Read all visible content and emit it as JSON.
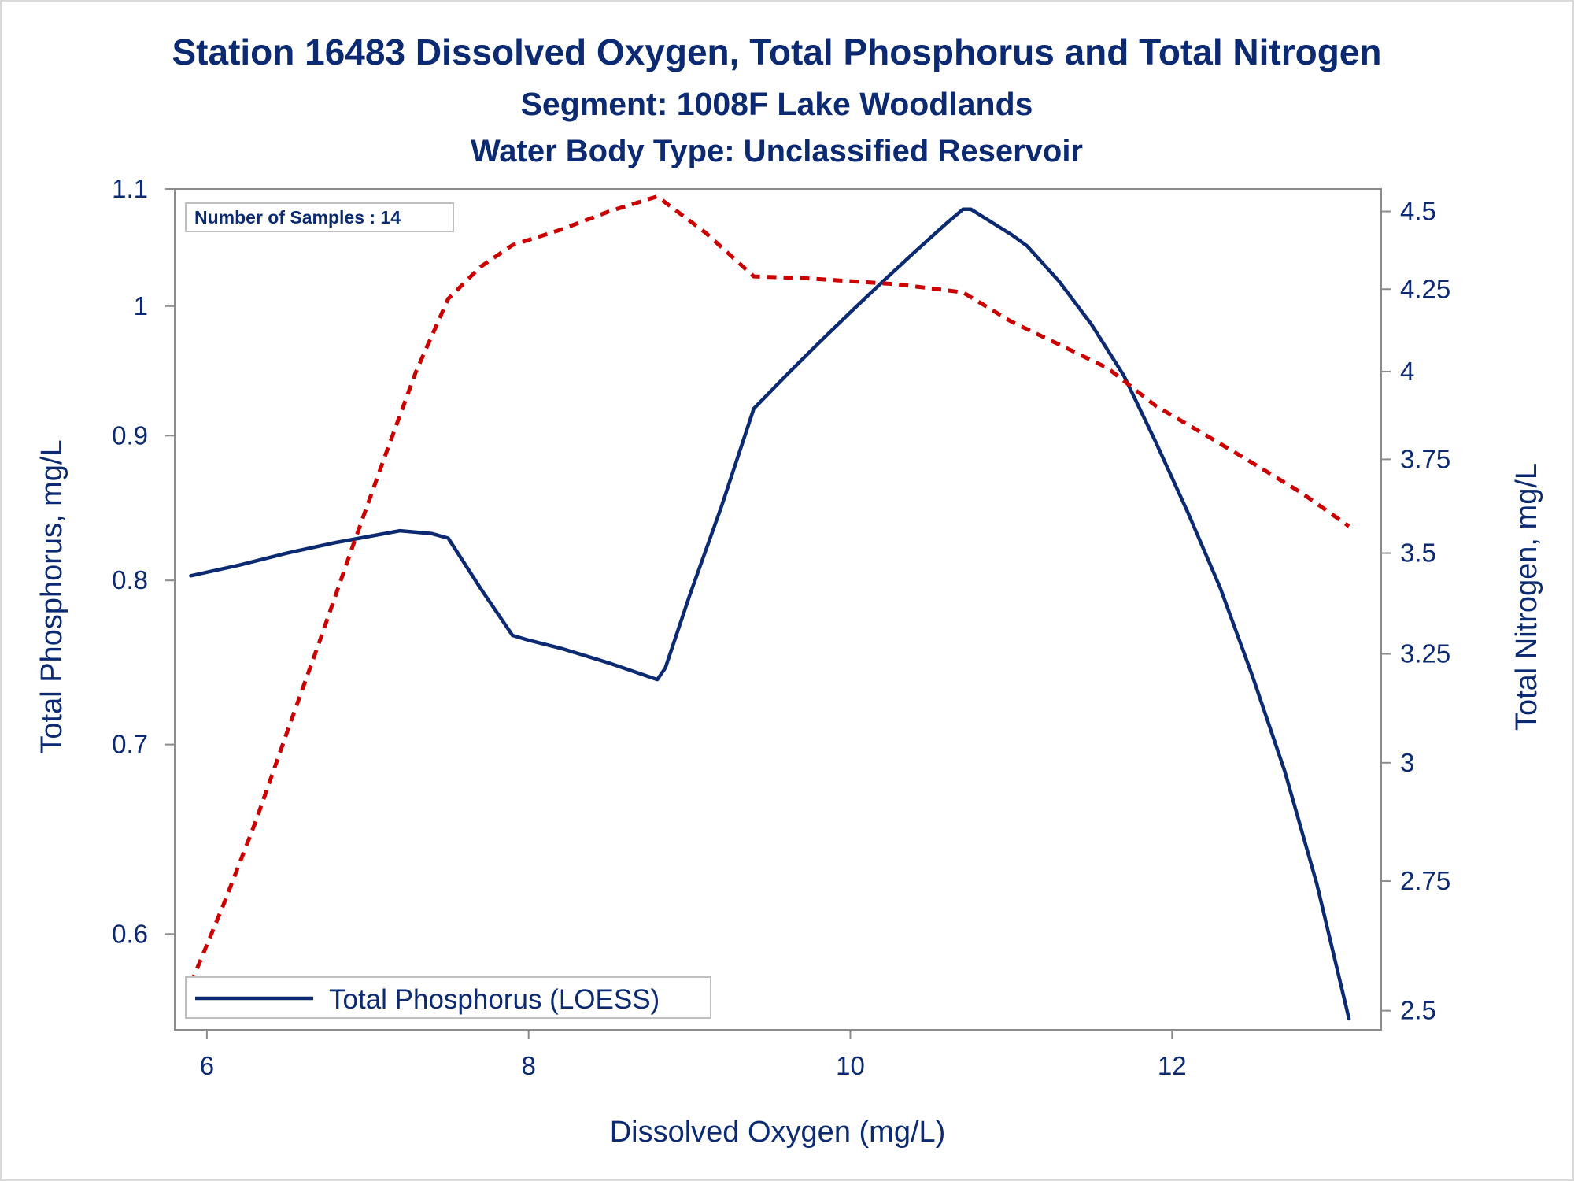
{
  "titles": {
    "line1": "Station 16483  Dissolved Oxygen, Total Phosphorus and Total Nitrogen",
    "line2": "Segment: 1008F  Lake Woodlands",
    "line3": "Water Body Type: Unclassified Reservoir"
  },
  "inset": {
    "text": "Number of Samples : 14"
  },
  "legend": {
    "label": "Total Phosphorus (LOESS)"
  },
  "colors": {
    "text": "#0b2a72",
    "phosphorus_line": "#0b2a72",
    "nitrogen_line": "#cc0000",
    "axis": "#8c8c8c"
  },
  "chart_data": {
    "type": "line",
    "xlabel": "Dissolved Oxygen (mg/L)",
    "ylabel_left": "Total Phosphorus, mg/L",
    "ylabel_right": "Total Nitrogen, mg/L",
    "x_ticks": [
      6,
      8,
      10,
      12
    ],
    "y_left_ticks": [
      0.6,
      0.7,
      0.8,
      0.9,
      1,
      1.1
    ],
    "y_right_ticks": [
      2.5,
      2.75,
      3,
      3.25,
      3.5,
      3.75,
      4,
      4.25,
      4.5
    ],
    "y_left_scale": "log",
    "y_right_scale": "log",
    "xlim": [
      5.8,
      13.3
    ],
    "ylim_left": [
      0.555,
      1.1
    ],
    "ylim_right": [
      2.465,
      4.575
    ],
    "grid": false,
    "legend_position": "bottom-left",
    "series": [
      {
        "name": "Total Phosphorus (LOESS)",
        "axis": "left",
        "style": "solid",
        "x": [
          5.9,
          6.2,
          6.5,
          6.8,
          7.0,
          7.2,
          7.4,
          7.5,
          7.7,
          7.9,
          8.0,
          8.2,
          8.5,
          8.8,
          8.85,
          9.0,
          9.2,
          9.4,
          9.6,
          9.8,
          10.0,
          10.2,
          10.4,
          10.6,
          10.7,
          10.75,
          11.0,
          11.1,
          11.3,
          11.5,
          11.7,
          11.9,
          12.1,
          12.3,
          12.5,
          12.7,
          12.9,
          13.1
        ],
        "y": [
          0.803,
          0.81,
          0.818,
          0.825,
          0.829,
          0.833,
          0.831,
          0.828,
          0.795,
          0.765,
          0.762,
          0.757,
          0.748,
          0.738,
          0.745,
          0.79,
          0.85,
          0.92,
          0.945,
          0.97,
          0.995,
          1.02,
          1.045,
          1.07,
          1.082,
          1.082,
          1.06,
          1.05,
          1.02,
          0.985,
          0.945,
          0.895,
          0.845,
          0.795,
          0.74,
          0.685,
          0.625,
          0.56
        ]
      },
      {
        "name": "",
        "axis": "right",
        "style": "dashed",
        "x": [
          5.9,
          6.1,
          6.3,
          6.5,
          6.7,
          6.9,
          7.1,
          7.3,
          7.5,
          7.7,
          7.9,
          8.2,
          8.5,
          8.8,
          9.1,
          9.4,
          9.7,
          10.0,
          10.3,
          10.7,
          11.0,
          11.3,
          11.6,
          11.9,
          12.2,
          12.5,
          12.8,
          13.1
        ],
        "y": [
          2.55,
          2.7,
          2.87,
          3.07,
          3.28,
          3.51,
          3.75,
          4.0,
          4.22,
          4.32,
          4.39,
          4.44,
          4.5,
          4.55,
          4.43,
          4.29,
          4.285,
          4.275,
          4.265,
          4.24,
          4.15,
          4.08,
          4.01,
          3.9,
          3.82,
          3.74,
          3.66,
          3.57
        ]
      }
    ]
  }
}
